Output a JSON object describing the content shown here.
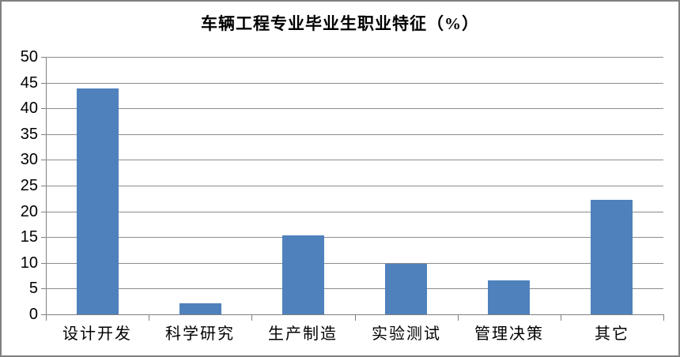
{
  "window": {
    "background": "#ffffff",
    "border_color": "#808080"
  },
  "chart_data": {
    "type": "bar",
    "title": "车辆工程专业毕业生职业特征（%）",
    "categories": [
      "设计开发",
      "科学研究",
      "生产制造",
      "实验测试",
      "管理决策",
      "其它"
    ],
    "values": [
      43.9,
      2.2,
      15.3,
      9.8,
      6.6,
      22.2
    ],
    "xlabel": "",
    "ylabel": "",
    "ylim": [
      0,
      50
    ],
    "yticks": [
      0,
      5,
      10,
      15,
      20,
      25,
      30,
      35,
      40,
      45,
      50
    ],
    "grid": true,
    "legend": "none",
    "bar_color": "#4F81BD",
    "gridline_color": "#8c8c8c",
    "axis_color": "#808080",
    "text_color": "#000000"
  }
}
